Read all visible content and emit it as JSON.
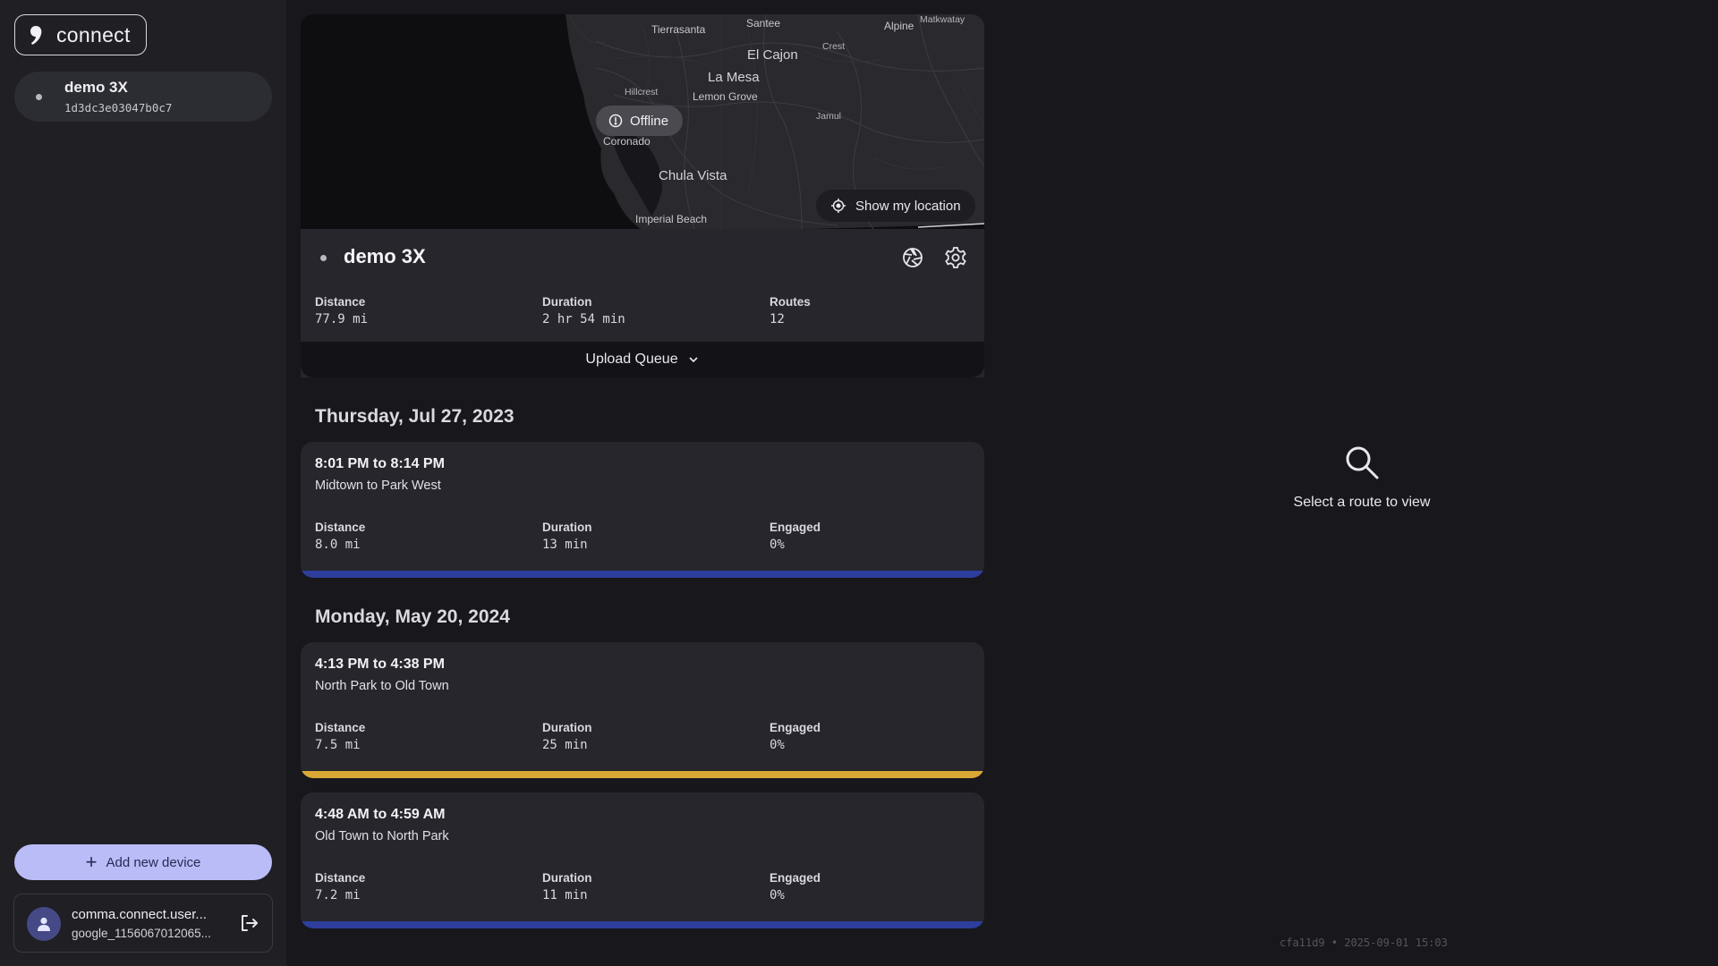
{
  "sidebar": {
    "logo_text": "connect",
    "device": {
      "name": "demo 3X",
      "id": "1d3dc3e03047b0c7"
    },
    "add_device_label": "Add new device",
    "account": {
      "name": "comma.connect.user...",
      "sub": "google_1156067012065..."
    }
  },
  "map": {
    "places": [
      "Tierrasanta",
      "Santee",
      "Alpine",
      "Matkwatay",
      "El Cajon",
      "Crest",
      "Hillcrest",
      "La Mesa",
      "Lemon Grove",
      "Jamul",
      "Coronado",
      "Chula Vista",
      "Imperial Beach"
    ],
    "offline_label": "Offline",
    "show_location_label": "Show my location"
  },
  "device_card": {
    "title": "demo 3X",
    "stats": [
      {
        "label": "Distance",
        "value": "77.9 mi"
      },
      {
        "label": "Duration",
        "value": "2 hr 54 min"
      },
      {
        "label": "Routes",
        "value": "12"
      }
    ],
    "upload_queue_label": "Upload Queue"
  },
  "groups": [
    {
      "date": "Thursday, Jul 27, 2023",
      "routes": [
        {
          "time": "8:01 PM to 8:14 PM",
          "name": "Midtown to Park West",
          "stats": [
            {
              "label": "Distance",
              "value": "8.0 mi"
            },
            {
              "label": "Duration",
              "value": "13 min"
            },
            {
              "label": "Engaged",
              "value": "0%"
            }
          ],
          "bar_color": "#2d3e9c"
        }
      ]
    },
    {
      "date": "Monday, May 20, 2024",
      "routes": [
        {
          "time": "4:13 PM to 4:38 PM",
          "name": "North Park to Old Town",
          "stats": [
            {
              "label": "Distance",
              "value": "7.5 mi"
            },
            {
              "label": "Duration",
              "value": "25 min"
            },
            {
              "label": "Engaged",
              "value": "0%"
            }
          ],
          "bar_color": "#d9a835"
        },
        {
          "time": "4:48 AM to 4:59 AM",
          "name": "Old Town to North Park",
          "stats": [
            {
              "label": "Distance",
              "value": "7.2 mi"
            },
            {
              "label": "Duration",
              "value": "11 min"
            },
            {
              "label": "Engaged",
              "value": "0%"
            }
          ],
          "bar_color": "#2d3e9c"
        }
      ]
    }
  ],
  "empty_state": {
    "icon": "search-icon",
    "message": "Select a route to view"
  },
  "footer": "cfa11d9 • 2025-09-01 15:03"
}
